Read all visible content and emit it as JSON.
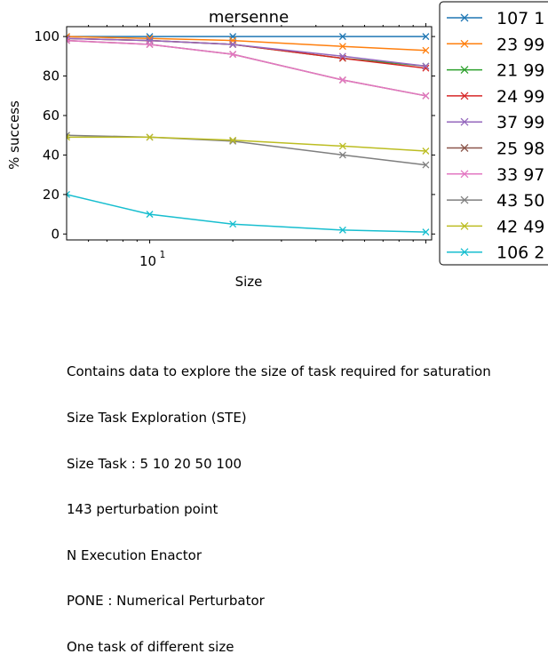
{
  "chart_data": {
    "type": "line",
    "title": "mersenne",
    "xlabel": "Size",
    "ylabel": "% success",
    "xscale": "log",
    "xlim": [
      5,
      105
    ],
    "ylim": [
      -3,
      105
    ],
    "x": [
      5,
      10,
      20,
      50,
      100
    ],
    "y_ticks": [
      0,
      20,
      40,
      60,
      80,
      100
    ],
    "y_tick_labels": [
      "0",
      "20",
      "40",
      "60",
      "80",
      "100"
    ],
    "x_tick_label": "10",
    "x_tick_label_exponent": "1",
    "legend_position": "right, outside",
    "series": [
      {
        "name": "107 1",
        "color": "#1f77b4",
        "values": [
          100,
          100,
          100,
          100,
          100
        ]
      },
      {
        "name": "23 99",
        "color": "#ff7f0e",
        "values": [
          100,
          99,
          98,
          95,
          93
        ]
      },
      {
        "name": "21 99",
        "color": "#2ca02c",
        "values": [
          99,
          98,
          96,
          89,
          85
        ]
      },
      {
        "name": "24 99",
        "color": "#d62728",
        "values": [
          99,
          98,
          96,
          89,
          84
        ]
      },
      {
        "name": "37 99",
        "color": "#9467bd",
        "values": [
          99,
          98,
          96,
          90,
          85
        ]
      },
      {
        "name": "25 98",
        "color": "#8c564b",
        "values": [
          98,
          96,
          91,
          78,
          70
        ]
      },
      {
        "name": "33 97",
        "color": "#e377c2",
        "values": [
          98,
          96,
          91,
          78,
          70
        ]
      },
      {
        "name": "43 50",
        "color": "#7f7f7f",
        "values": [
          50,
          49,
          47,
          40,
          35
        ]
      },
      {
        "name": "42 49",
        "color": "#bcbd22",
        "values": [
          49,
          49,
          47.5,
          44.5,
          42
        ]
      },
      {
        "name": "106 2",
        "color": "#17becf",
        "values": [
          20,
          10,
          5,
          2,
          1
        ]
      }
    ]
  },
  "caption": [
    "Contains data to explore the size of task required for saturation",
    "Size Task Exploration (STE)",
    "Size Task : 5 10 20 50 100",
    "143 perturbation point",
    "N Execution Enactor",
    "PONE : Numerical Perturbator",
    "One task of different size"
  ]
}
